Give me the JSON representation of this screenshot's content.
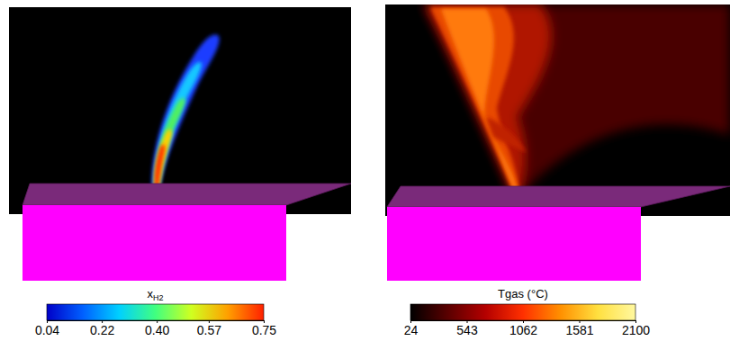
{
  "chart_data": [
    {
      "type": "contour",
      "colorbar": {
        "title": "xH2",
        "lim": [
          0.04,
          0.75
        ],
        "ticks": [
          0.04,
          0.22,
          {
            "value": 0.4,
            "label": "0.40"
          },
          0.57,
          0.75
        ]
      }
    },
    {
      "type": "contour",
      "colorbar": {
        "title": "Tgas (°C)",
        "lim": [
          24,
          2100
        ],
        "ticks": [
          24,
          543,
          1062,
          1581,
          2100
        ]
      }
    }
  ]
}
